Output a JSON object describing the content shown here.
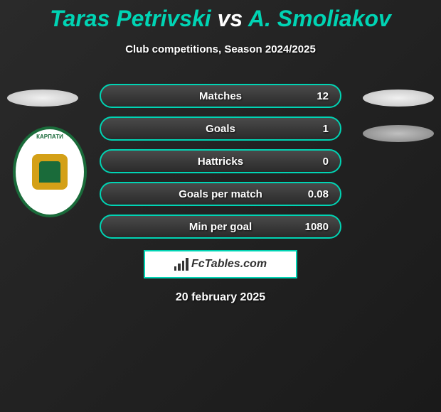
{
  "title": {
    "player1": "Taras Petrivski",
    "vs": "vs",
    "player2": "A. Smoliakov"
  },
  "subtitle": "Club competitions, Season 2024/2025",
  "stats": [
    {
      "label": "Matches",
      "value": "12"
    },
    {
      "label": "Goals",
      "value": "1"
    },
    {
      "label": "Hattricks",
      "value": "0"
    },
    {
      "label": "Goals per match",
      "value": "0.08"
    },
    {
      "label": "Min per goal",
      "value": "1080"
    }
  ],
  "club_logo_text": "КАРПАТИ",
  "footer_brand": "FcTables.com",
  "date": "20 february 2025",
  "colors": {
    "accent": "#00d4b4",
    "text": "#ffffff",
    "bg_dark": "#1a1a1a",
    "bg_mid": "#2a2a2a",
    "logo_green": "#1a6b3a",
    "logo_gold": "#d4a017"
  }
}
